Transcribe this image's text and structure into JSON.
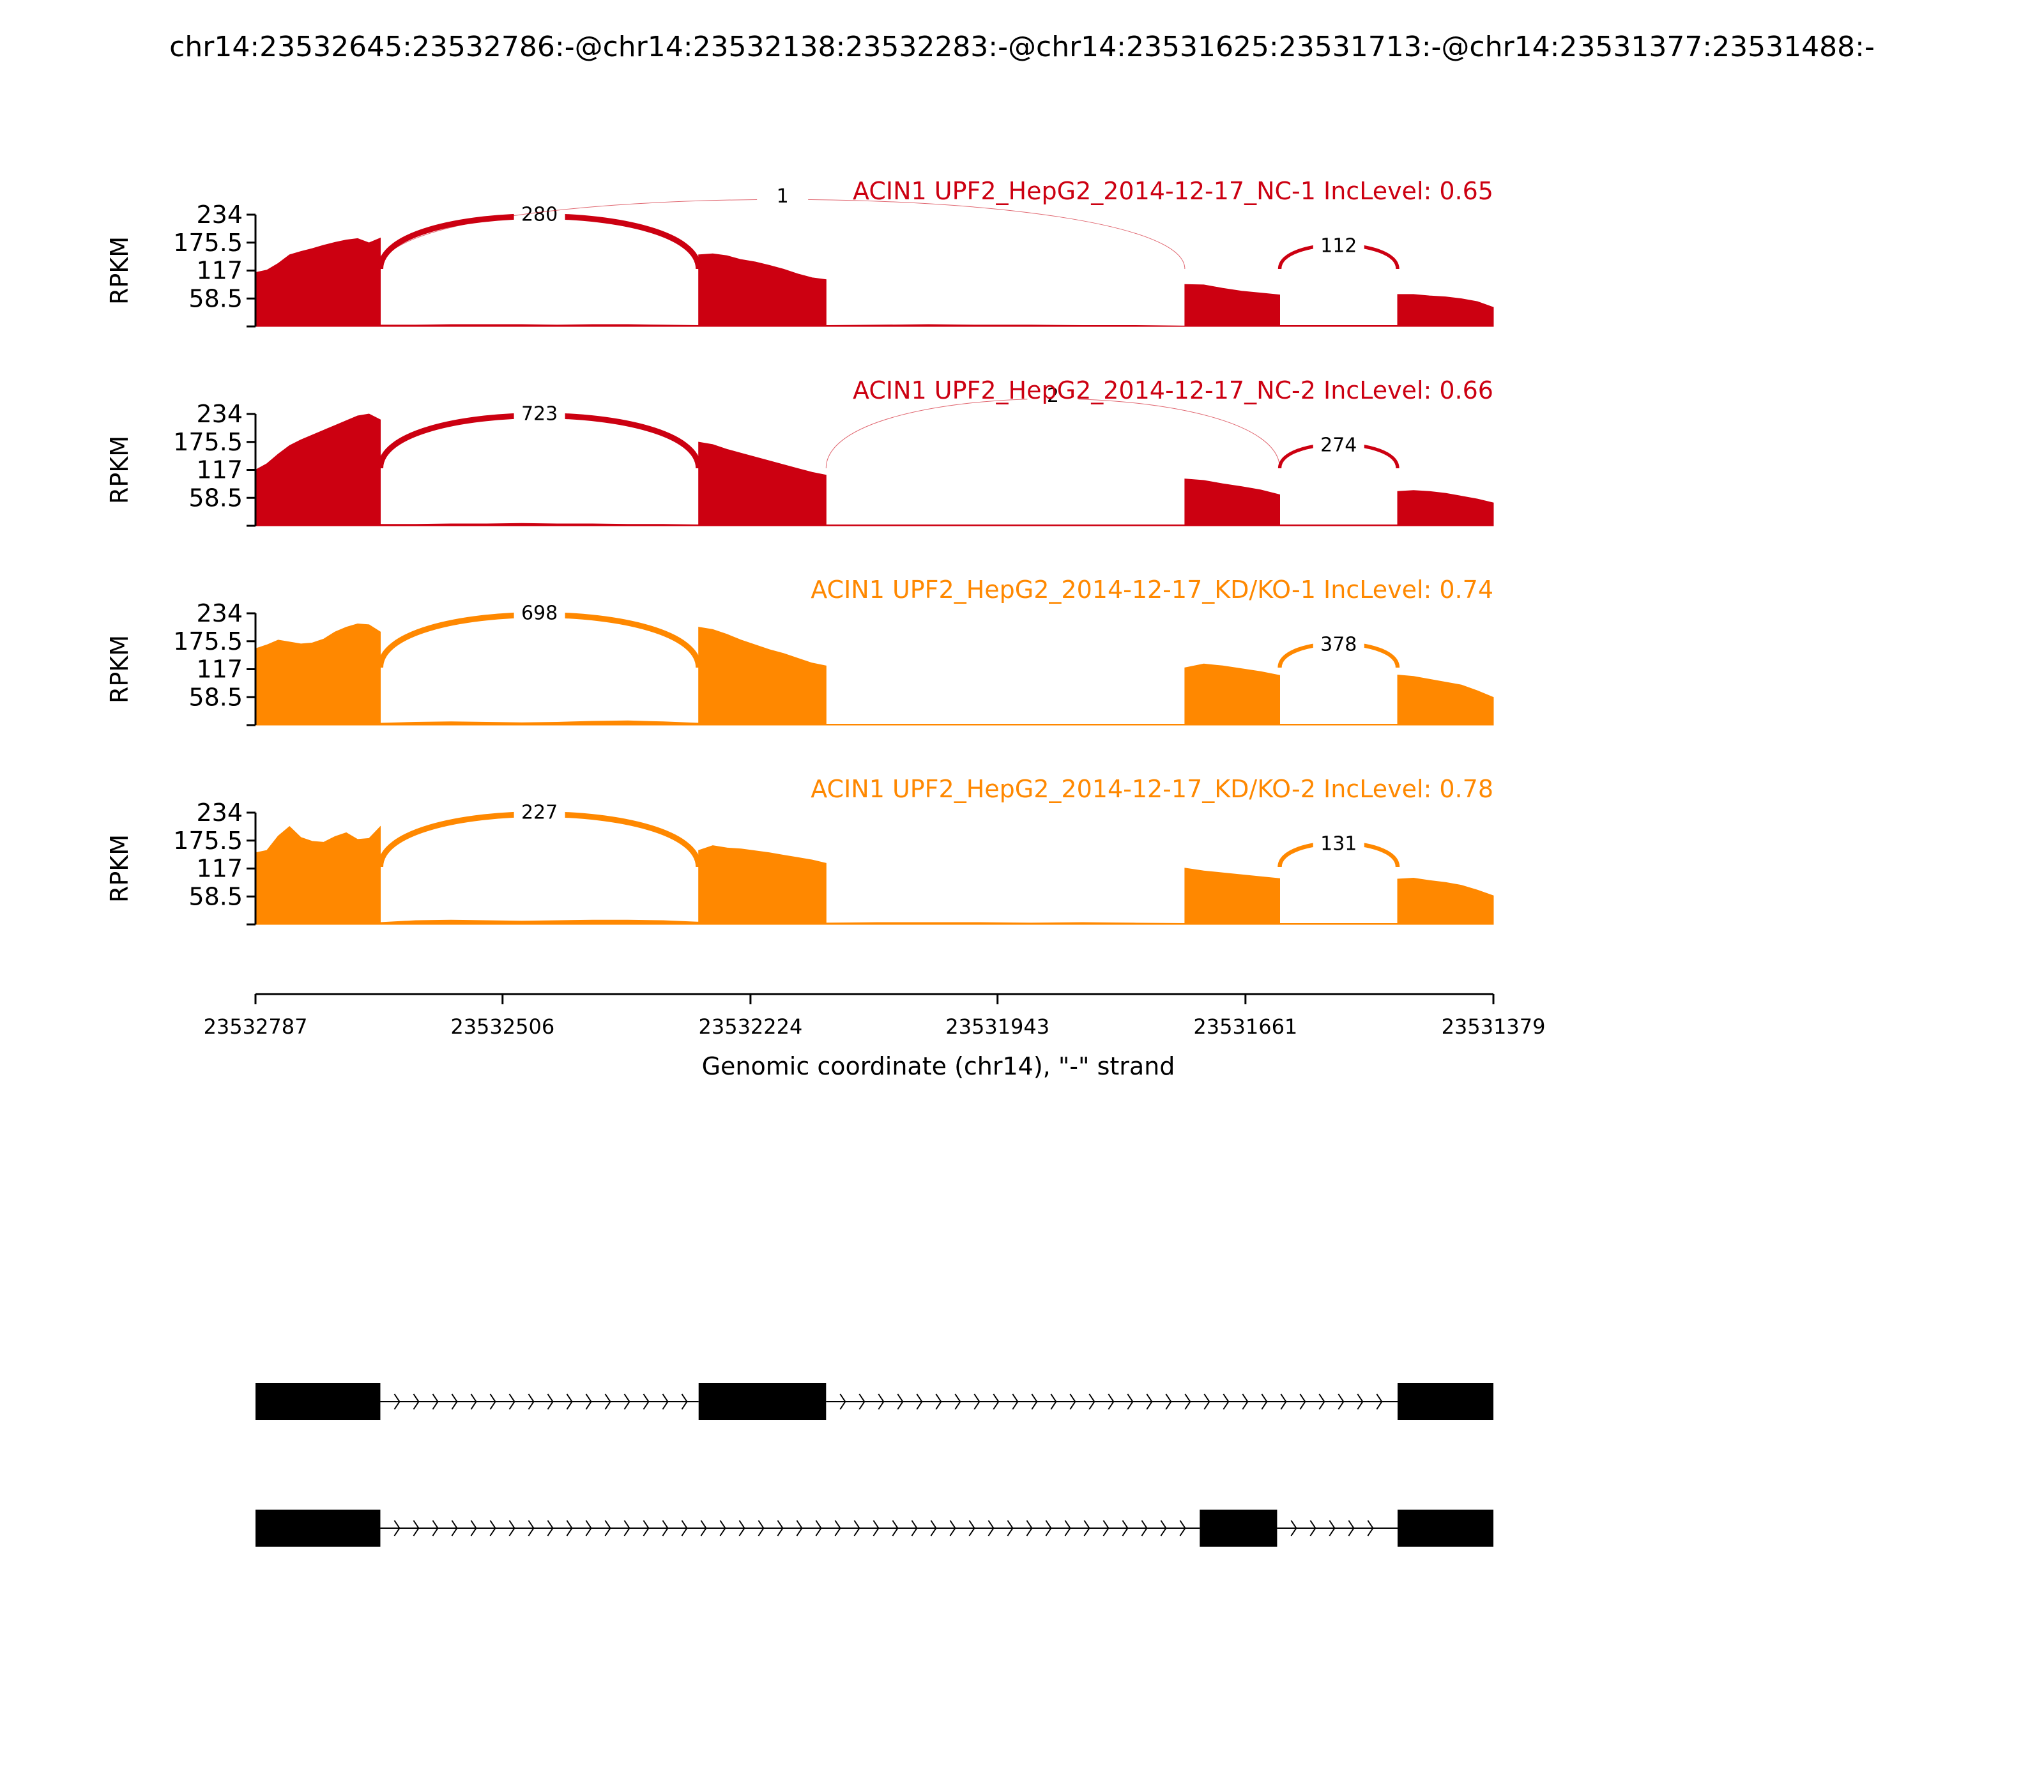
{
  "figure": {
    "title": "chr14:23532645:23532786:-@chr14:23532138:23532283:-@chr14:23531625:23531713:-@chr14:23531377:23531488:-"
  },
  "chart_data": {
    "type": "area",
    "title": "chr14:23532645:23532786:-@chr14:23532138:23532283:-@chr14:23531625:23531713:-@chr14:23531377:23531488:-",
    "xlabel": "Genomic coordinate (chr14), \"-\" strand",
    "ylabel": "RPKM",
    "xlim": [
      23532787,
      23531379
    ],
    "x_reversed": true,
    "xticks": [
      "23532787",
      "23532506",
      "23532224",
      "23531943",
      "23531661",
      "23531379"
    ],
    "ylim": [
      0,
      234
    ],
    "yticks": [
      "234",
      "175.5",
      "117",
      "58.5"
    ],
    "grid": false,
    "exons": [
      {
        "start": 23532787,
        "end": 23532645
      },
      {
        "start": 23532283,
        "end": 23532138
      },
      {
        "start": 23531713,
        "end": 23531606
      },
      {
        "start": 23531488,
        "end": 23531379
      }
    ],
    "series": [
      {
        "name": "ACIN1 UPF2_HepG2_2014-12-17_NC-1 IncLevel: 0.65",
        "color": "#cc0011",
        "coverage_segments": [
          {
            "x0": 23532787,
            "x1": 23532645,
            "y": [
              113,
              118,
              132,
              150,
              157,
              163,
              170,
              176,
              181,
              184,
              175,
              185
            ]
          },
          {
            "x0": 23532645,
            "x1": 23532283,
            "y": [
              3,
              3,
              4,
              4,
              4,
              3,
              4,
              4,
              3,
              2
            ]
          },
          {
            "x0": 23532283,
            "x1": 23532138,
            "y": [
              150,
              152,
              148,
              140,
              135,
              128,
              120,
              110,
              102,
              98
            ]
          },
          {
            "x0": 23532138,
            "x1": 23531730,
            "y": [
              2,
              3,
              4,
              3,
              3,
              2,
              2,
              1
            ]
          },
          {
            "x0": 23531730,
            "x1": 23531622,
            "y": [
              88,
              87,
              80,
              74,
              70,
              66
            ]
          },
          {
            "x0": 23531622,
            "x1": 23531488,
            "y": [
              2,
              2,
              2,
              2
            ]
          },
          {
            "x0": 23531488,
            "x1": 23531379,
            "y": [
              67,
              67,
              64,
              62,
              58,
              52,
              40
            ]
          }
        ],
        "junctions": [
          {
            "from": 23532645,
            "to": 23532283,
            "count": "280"
          },
          {
            "from": 23532645,
            "to": 23531730,
            "count": "1"
          },
          {
            "from": 23531622,
            "to": 23531488,
            "count": "112"
          }
        ]
      },
      {
        "name": "ACIN1 UPF2_HepG2_2014-12-17_NC-2 IncLevel: 0.66",
        "color": "#cc0011",
        "coverage_segments": [
          {
            "x0": 23532787,
            "x1": 23532645,
            "y": [
              117,
              130,
              150,
              168,
              180,
              190,
              200,
              210,
              220,
              230,
              234,
              222
            ]
          },
          {
            "x0": 23532645,
            "x1": 23532283,
            "y": [
              3,
              3,
              4,
              4,
              5,
              4,
              4,
              3,
              3,
              2
            ]
          },
          {
            "x0": 23532283,
            "x1": 23532138,
            "y": [
              175,
              170,
              160,
              152,
              144,
              136,
              128,
              120,
              112,
              106
            ]
          },
          {
            "x0": 23532138,
            "x1": 23531730,
            "y": [
              2,
              2,
              2,
              2,
              2,
              2,
              2,
              2
            ]
          },
          {
            "x0": 23531730,
            "x1": 23531622,
            "y": [
              98,
              95,
              88,
              82,
              75,
              65
            ]
          },
          {
            "x0": 23531622,
            "x1": 23531488,
            "y": [
              2,
              2,
              2,
              2
            ]
          },
          {
            "x0": 23531488,
            "x1": 23531379,
            "y": [
              72,
              74,
              72,
              68,
              62,
              56,
              48
            ]
          }
        ],
        "junctions": [
          {
            "from": 23532645,
            "to": 23532283,
            "count": "723"
          },
          {
            "from": 23532138,
            "to": 23531622,
            "count": "2"
          },
          {
            "from": 23531622,
            "to": 23531488,
            "count": "274"
          }
        ]
      },
      {
        "name": "ACIN1 UPF2_HepG2_2014-12-17_KD/KO-1 IncLevel: 0.74",
        "color": "#ff8800",
        "coverage_segments": [
          {
            "x0": 23532787,
            "x1": 23532645,
            "y": [
              160,
              168,
              178,
              174,
              170,
              172,
              180,
              195,
              205,
              212,
              210,
              195
            ]
          },
          {
            "x0": 23532645,
            "x1": 23532283,
            "y": [
              4,
              6,
              7,
              6,
              5,
              6,
              8,
              9,
              7,
              4
            ]
          },
          {
            "x0": 23532283,
            "x1": 23532138,
            "y": [
              205,
              200,
              190,
              178,
              168,
              158,
              150,
              140,
              130,
              124
            ]
          },
          {
            "x0": 23532138,
            "x1": 23531730,
            "y": [
              2,
              2,
              2,
              2,
              2,
              2,
              2,
              2
            ]
          },
          {
            "x0": 23531730,
            "x1": 23531622,
            "y": [
              120,
              128,
              124,
              118,
              112,
              104
            ]
          },
          {
            "x0": 23531622,
            "x1": 23531488,
            "y": [
              2,
              2,
              2,
              2
            ]
          },
          {
            "x0": 23531488,
            "x1": 23531379,
            "y": [
              105,
              102,
              96,
              90,
              84,
              72,
              58
            ]
          }
        ],
        "junctions": [
          {
            "from": 23532645,
            "to": 23532283,
            "count": "698"
          },
          {
            "from": 23531622,
            "to": 23531488,
            "count": "378"
          }
        ]
      },
      {
        "name": "ACIN1 UPF2_HepG2_2014-12-17_KD/KO-2 IncLevel: 0.78",
        "color": "#ff8800",
        "coverage_segments": [
          {
            "x0": 23532787,
            "x1": 23532645,
            "y": [
              150,
              155,
              185,
              205,
              182,
              174,
              172,
              184,
              192,
              178,
              180,
              205
            ]
          },
          {
            "x0": 23532645,
            "x1": 23532283,
            "y": [
              4,
              8,
              9,
              8,
              7,
              8,
              9,
              9,
              8,
              5
            ]
          },
          {
            "x0": 23532283,
            "x1": 23532138,
            "y": [
              155,
              165,
              160,
              158,
              154,
              150,
              145,
              140,
              135,
              128
            ]
          },
          {
            "x0": 23532138,
            "x1": 23531730,
            "y": [
              3,
              4,
              4,
              4,
              3,
              4,
              3,
              2
            ]
          },
          {
            "x0": 23531730,
            "x1": 23531622,
            "y": [
              118,
              112,
              108,
              104,
              100,
              96
            ]
          },
          {
            "x0": 23531622,
            "x1": 23531488,
            "y": [
              2,
              2,
              2,
              2
            ]
          },
          {
            "x0": 23531488,
            "x1": 23531379,
            "y": [
              95,
              97,
              92,
              88,
              82,
              72,
              60
            ]
          }
        ],
        "junctions": [
          {
            "from": 23532645,
            "to": 23532283,
            "count": "227"
          },
          {
            "from": 23531622,
            "to": 23531488,
            "count": "131"
          }
        ]
      }
    ],
    "isoforms": [
      {
        "exons": [
          [
            23532787,
            23532645
          ],
          [
            23532283,
            23532138
          ],
          [
            23531488,
            23531379
          ]
        ]
      },
      {
        "exons": [
          [
            23532787,
            23532645
          ],
          [
            23531713,
            23531625
          ],
          [
            23531488,
            23531379
          ]
        ]
      }
    ]
  }
}
